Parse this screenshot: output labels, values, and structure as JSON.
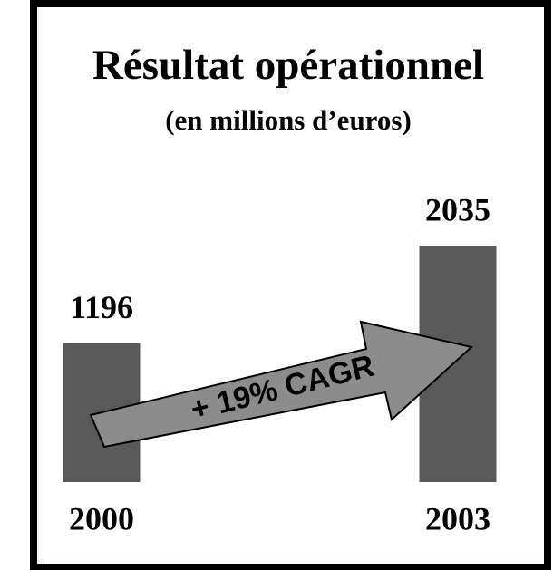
{
  "chart_data": {
    "type": "bar",
    "title": "Résultat opérationnel",
    "subtitle": "(en millions d’euros)",
    "categories": [
      "2000",
      "2003"
    ],
    "values": [
      1196,
      2035
    ],
    "color": "#595959",
    "annotation": "+ 19% CAGR"
  }
}
